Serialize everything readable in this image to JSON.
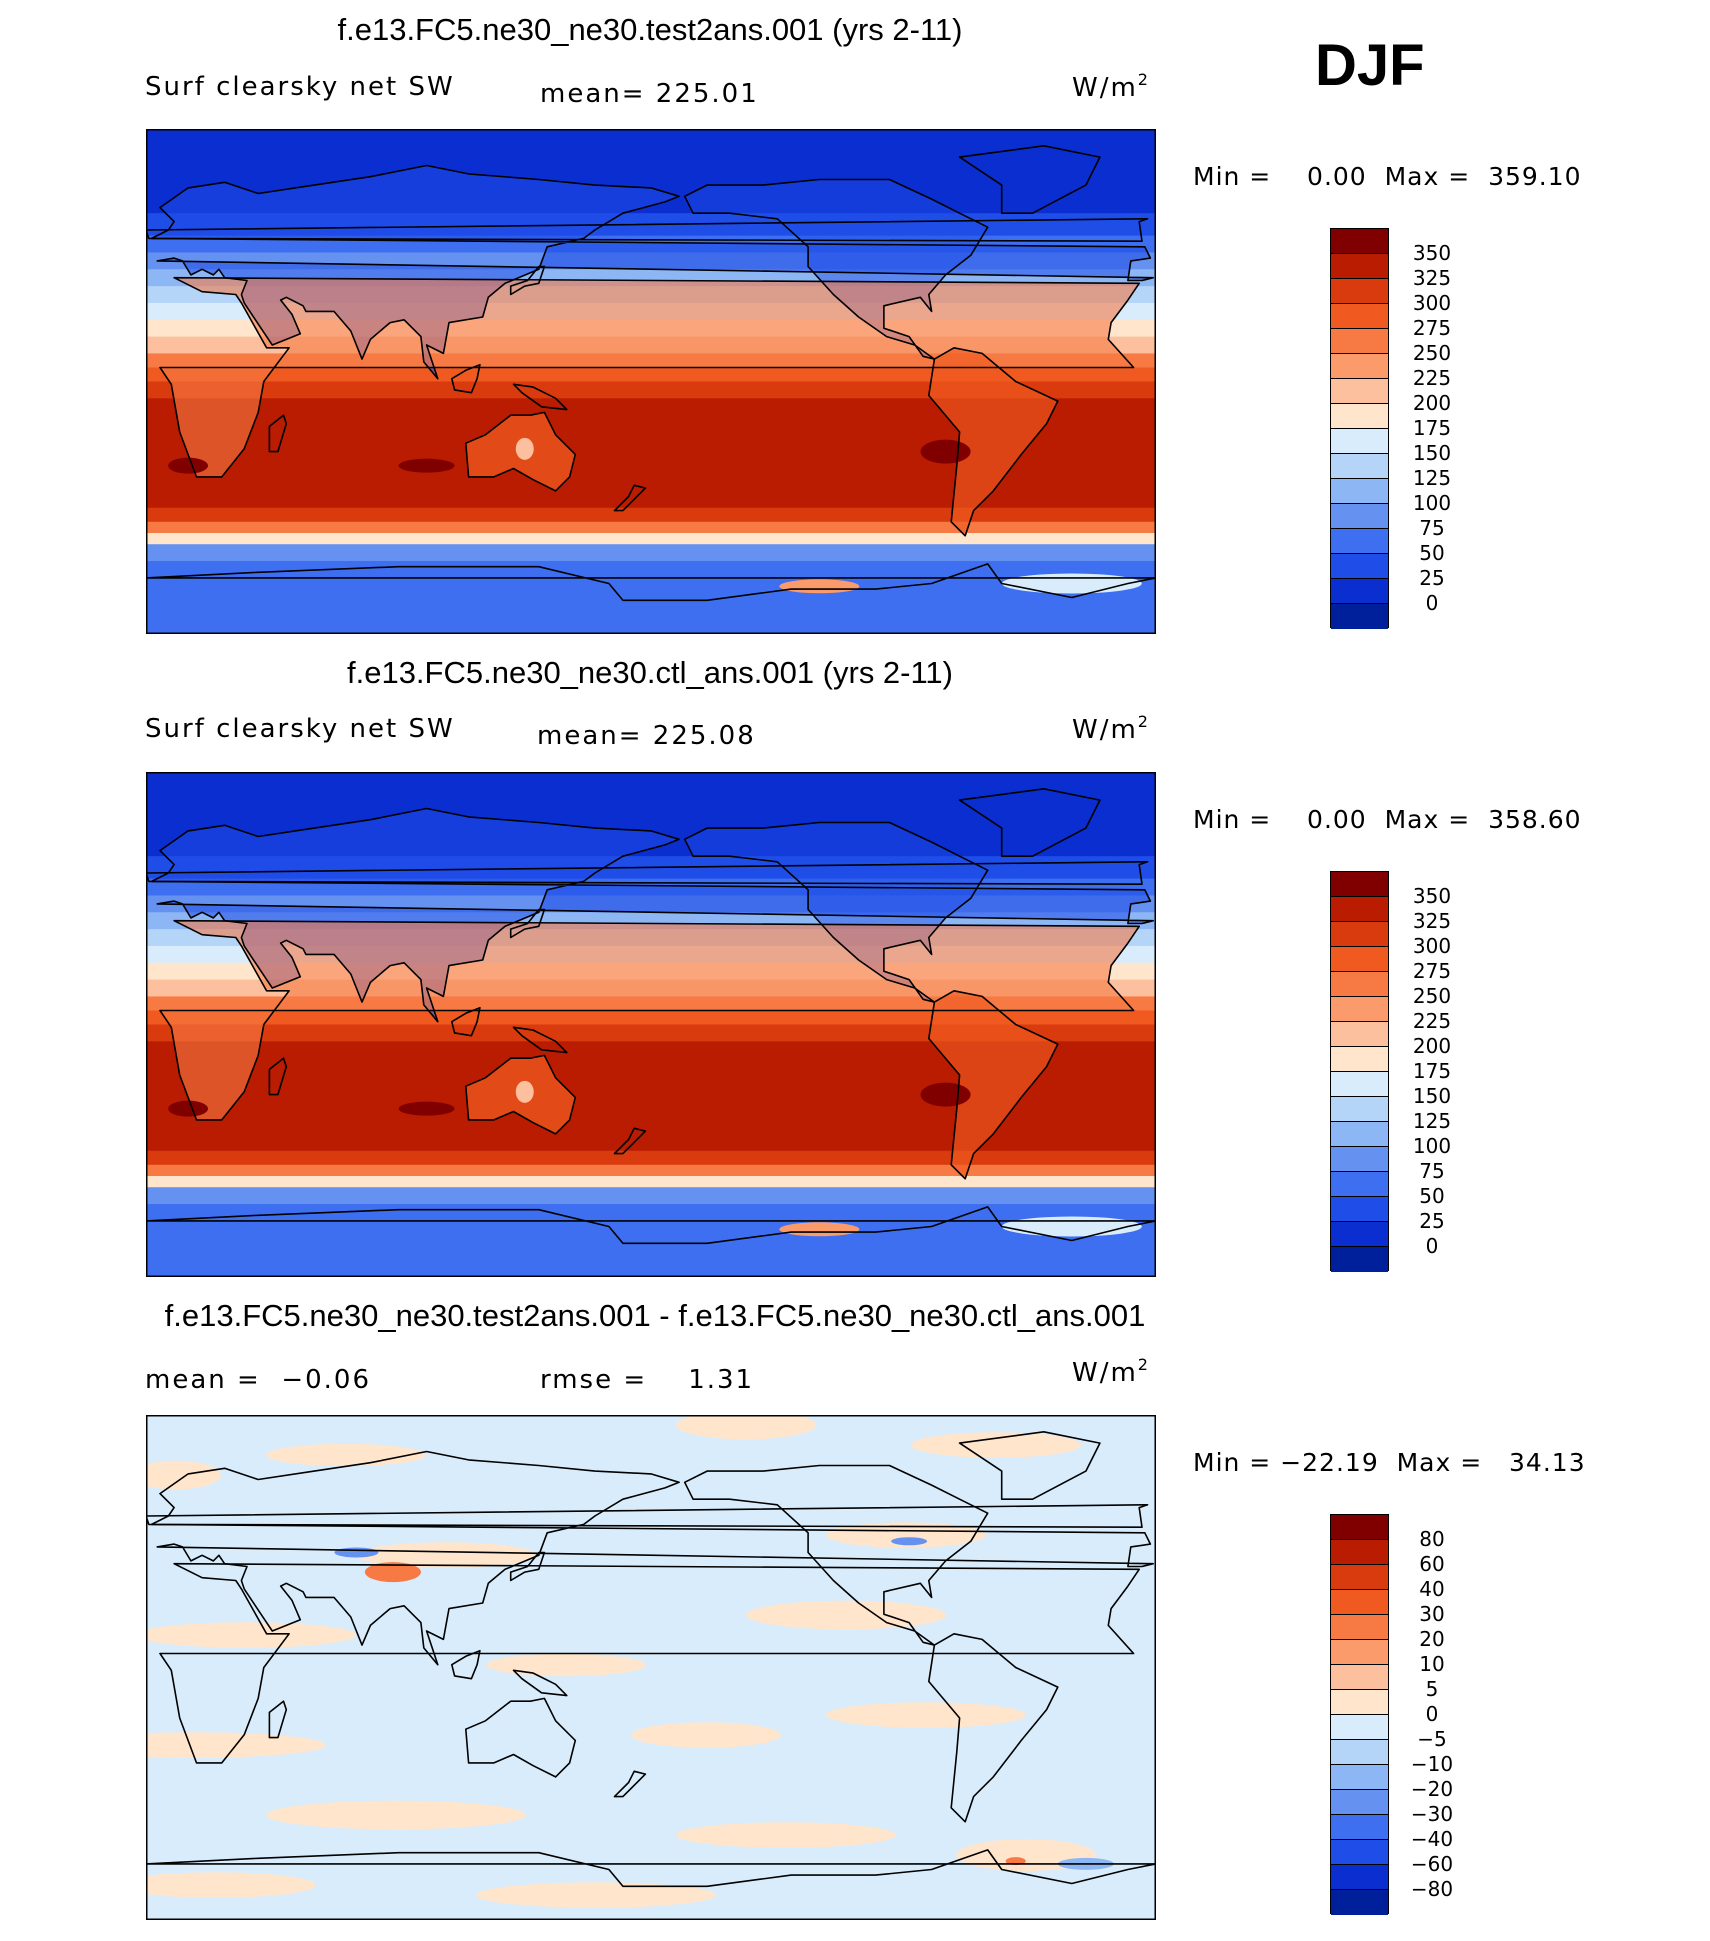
{
  "season": "DJF",
  "panels": [
    {
      "title": "f.e13.FC5.ne30_ne30.test2ans.001 (yrs 2-11)",
      "variable": "Surf clearsky net SW",
      "stat_left": "",
      "stat_center": "mean= 225.01",
      "units": "W/m",
      "units_sup": "2",
      "minmax": "Min =    0.00  Max =  359.10",
      "colorbar": {
        "labels": [
          "350",
          "325",
          "300",
          "275",
          "250",
          "225",
          "200",
          "175",
          "150",
          "125",
          "100",
          "75",
          "50",
          "25",
          "0"
        ],
        "colors": [
          "#800000",
          "#b91c00",
          "#d93a0e",
          "#f05a20",
          "#f77a44",
          "#fb9a6a",
          "#fdc09e",
          "#fee5cc",
          "#d8ecfb",
          "#b4d4f8",
          "#8db6f5",
          "#6592f0",
          "#3d6ff0",
          "#1f4de8",
          "#0a2ed0",
          "#001f9a"
        ]
      },
      "map": {
        "field": "clearsky_net_sw",
        "mean": 225.01
      }
    },
    {
      "title": "f.e13.FC5.ne30_ne30.ctl_ans.001 (yrs 2-11)",
      "variable": "Surf clearsky net SW",
      "stat_left": "",
      "stat_center": "mean= 225.08",
      "units": "W/m",
      "units_sup": "2",
      "minmax": "Min =    0.00  Max =  358.60",
      "colorbar": {
        "labels": [
          "350",
          "325",
          "300",
          "275",
          "250",
          "225",
          "200",
          "175",
          "150",
          "125",
          "100",
          "75",
          "50",
          "25",
          "0"
        ],
        "colors": [
          "#800000",
          "#b91c00",
          "#d93a0e",
          "#f05a20",
          "#f77a44",
          "#fb9a6a",
          "#fdc09e",
          "#fee5cc",
          "#d8ecfb",
          "#b4d4f8",
          "#8db6f5",
          "#6592f0",
          "#3d6ff0",
          "#1f4de8",
          "#0a2ed0",
          "#001f9a"
        ]
      },
      "map": {
        "field": "clearsky_net_sw",
        "mean": 225.08
      }
    },
    {
      "title": "f.e13.FC5.ne30_ne30.test2ans.001 - f.e13.FC5.ne30_ne30.ctl_ans.001",
      "variable": "",
      "stat_left": "mean =  −0.06",
      "stat_center": "rmse =    1.31",
      "units": "W/m",
      "units_sup": "2",
      "minmax": "Min = −22.19  Max =   34.13",
      "colorbar": {
        "labels": [
          "80",
          "60",
          "40",
          "30",
          "20",
          "10",
          "5",
          "0",
          "−5",
          "−10",
          "−20",
          "−30",
          "−40",
          "−60",
          "−80"
        ],
        "colors": [
          "#800000",
          "#b91c00",
          "#d93a0e",
          "#f05a20",
          "#f77a44",
          "#fb9a6a",
          "#fdc09e",
          "#fee5cc",
          "#d8ecfb",
          "#b4d4f8",
          "#8db6f5",
          "#6592f0",
          "#3d6ff0",
          "#1f4de8",
          "#0a2ed0",
          "#001f9a"
        ]
      },
      "map": {
        "field": "difference"
      }
    }
  ]
}
